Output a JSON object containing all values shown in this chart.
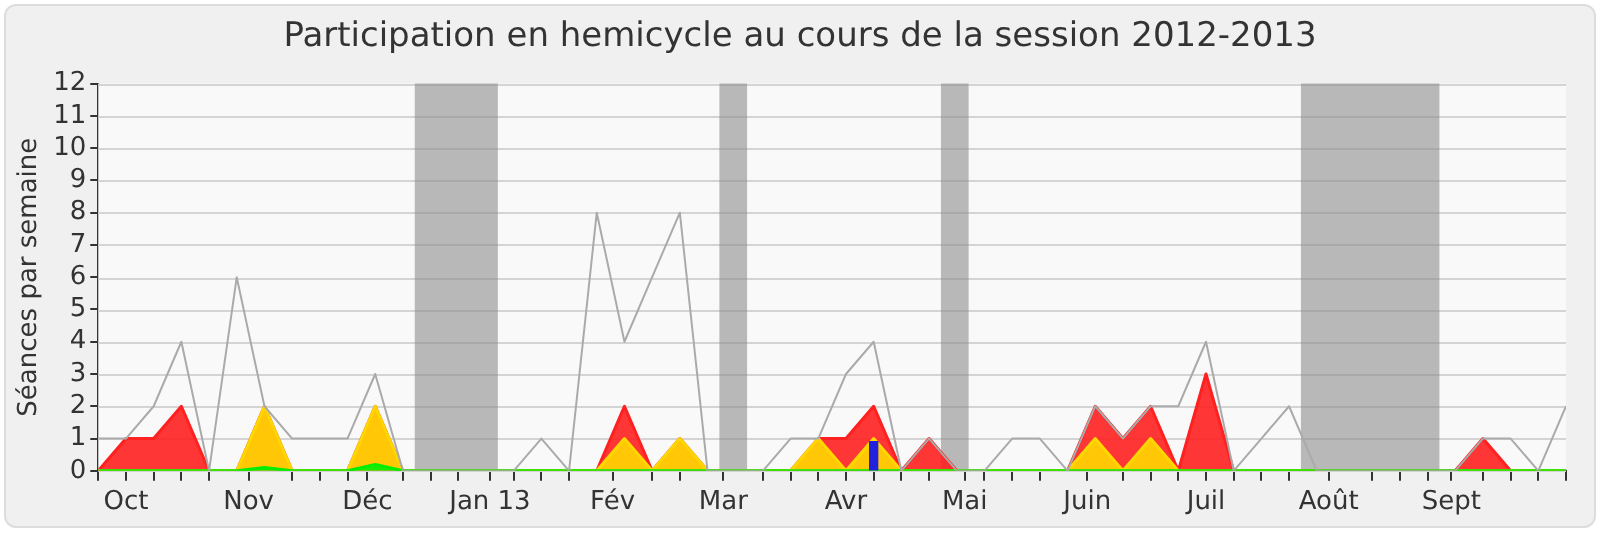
{
  "chart_data": {
    "type": "area",
    "title": "Participation en hemicycle au cours de la session 2012-2013",
    "ylabel": "Séances par semaine",
    "x": [
      "2012-09-24",
      "2012-10-01",
      "2012-10-08",
      "2012-10-15",
      "2012-10-22",
      "2012-10-29",
      "2012-11-05",
      "2012-11-12",
      "2012-11-19",
      "2012-11-26",
      "2012-12-03",
      "2012-12-10",
      "2012-12-17",
      "2012-12-24",
      "2012-12-31",
      "2013-01-07",
      "2013-01-14",
      "2013-01-21",
      "2013-01-28",
      "2013-02-04",
      "2013-02-11",
      "2013-02-18",
      "2013-02-25",
      "2013-03-04",
      "2013-03-11",
      "2013-03-18",
      "2013-03-25",
      "2013-04-01",
      "2013-04-08",
      "2013-04-15",
      "2013-04-22",
      "2013-04-29",
      "2013-05-06",
      "2013-05-13",
      "2013-05-20",
      "2013-05-27",
      "2013-06-03",
      "2013-06-10",
      "2013-06-17",
      "2013-06-24",
      "2013-07-01",
      "2013-07-08",
      "2013-07-15",
      "2013-07-22",
      "2013-07-29",
      "2013-08-05",
      "2013-08-12",
      "2013-08-19",
      "2013-08-26",
      "2013-09-02",
      "2013-09-09",
      "2013-09-16",
      "2013-09-23",
      "2013-09-30"
    ],
    "xlim": [
      "2012-09-24",
      "2013-09-30"
    ],
    "xticks": [
      {
        "value": "2012-09-24",
        "label": null
      },
      {
        "value": "2012-10-01",
        "label": "Oct"
      },
      {
        "value": "2012-10-08",
        "label": null
      },
      {
        "value": "2012-10-15",
        "label": null
      },
      {
        "value": "2012-10-22",
        "label": null
      },
      {
        "value": "2012-11-01",
        "label": "Nov"
      },
      {
        "value": "2012-11-12",
        "label": null
      },
      {
        "value": "2012-11-19",
        "label": null
      },
      {
        "value": "2012-11-26",
        "label": null
      },
      {
        "value": "2012-12-01",
        "label": "Déc"
      },
      {
        "value": "2012-12-10",
        "label": null
      },
      {
        "value": "2012-12-17",
        "label": null
      },
      {
        "value": "2012-12-24",
        "label": null
      },
      {
        "value": "2013-01-01",
        "label": "Jan 13"
      },
      {
        "value": "2013-01-07",
        "label": null
      },
      {
        "value": "2013-01-14",
        "label": null
      },
      {
        "value": "2013-01-21",
        "label": null
      },
      {
        "value": "2013-02-01",
        "label": "Fév"
      },
      {
        "value": "2013-02-11",
        "label": null
      },
      {
        "value": "2013-02-18",
        "label": null
      },
      {
        "value": "2013-03-01",
        "label": "Mar"
      },
      {
        "value": "2013-03-11",
        "label": null
      },
      {
        "value": "2013-03-18",
        "label": null
      },
      {
        "value": "2013-03-25",
        "label": null
      },
      {
        "value": "2013-04-01",
        "label": "Avr"
      },
      {
        "value": "2013-04-08",
        "label": null
      },
      {
        "value": "2013-04-15",
        "label": null
      },
      {
        "value": "2013-04-22",
        "label": null
      },
      {
        "value": "2013-05-01",
        "label": "Mai"
      },
      {
        "value": "2013-05-06",
        "label": null
      },
      {
        "value": "2013-05-13",
        "label": null
      },
      {
        "value": "2013-05-20",
        "label": null
      },
      {
        "value": "2013-06-01",
        "label": "Juin"
      },
      {
        "value": "2013-06-10",
        "label": null
      },
      {
        "value": "2013-06-17",
        "label": null
      },
      {
        "value": "2013-06-24",
        "label": null
      },
      {
        "value": "2013-07-01",
        "label": "Juil"
      },
      {
        "value": "2013-07-08",
        "label": null
      },
      {
        "value": "2013-07-15",
        "label": null
      },
      {
        "value": "2013-07-22",
        "label": null
      },
      {
        "value": "2013-08-01",
        "label": "Août"
      },
      {
        "value": "2013-08-12",
        "label": null
      },
      {
        "value": "2013-08-19",
        "label": null
      },
      {
        "value": "2013-08-26",
        "label": null
      },
      {
        "value": "2013-09-01",
        "label": "Sept"
      },
      {
        "value": "2013-09-09",
        "label": null
      },
      {
        "value": "2013-09-16",
        "label": null
      },
      {
        "value": "2013-09-23",
        "label": null
      },
      {
        "value": "2013-09-30",
        "label": null
      }
    ],
    "ylim": [
      0,
      12
    ],
    "yticks": [
      0,
      1,
      2,
      3,
      4,
      5,
      6,
      7,
      8,
      9,
      10,
      11,
      12
    ],
    "series": [
      {
        "type": "line",
        "color": "#aaaaaa",
        "values": [
          1,
          1,
          2,
          4,
          0,
          6,
          2,
          1,
          1,
          1,
          3,
          0,
          0,
          0,
          0,
          0,
          1,
          0,
          8,
          4,
          6,
          8,
          0,
          0,
          0,
          1,
          1,
          3,
          4,
          0,
          1,
          0,
          0,
          1,
          1,
          0,
          2,
          1,
          2,
          2,
          4,
          0,
          1,
          2,
          0,
          0,
          0,
          0,
          0,
          0,
          1,
          1,
          0,
          2
        ]
      },
      {
        "color": "#ff2020",
        "values": [
          0,
          1,
          1,
          2,
          0,
          0,
          2,
          0,
          0,
          0,
          2,
          0,
          0,
          0,
          0,
          0,
          0,
          0,
          0,
          2,
          0,
          1,
          0,
          0,
          0,
          0,
          1,
          1,
          2,
          0,
          1,
          0,
          0,
          0,
          0,
          0,
          2,
          1,
          2,
          0,
          3,
          0,
          0,
          0,
          0,
          0,
          0,
          0,
          0,
          0,
          1,
          0,
          0,
          0
        ]
      },
      {
        "color": "#ffd700",
        "values": [
          0,
          0,
          0,
          0,
          0,
          0,
          2,
          0,
          0,
          0,
          2,
          0,
          0,
          0,
          0,
          0,
          0,
          0,
          0,
          1,
          0,
          1,
          0,
          0,
          0,
          0,
          1,
          0,
          1,
          0,
          0,
          0,
          0,
          0,
          0,
          0,
          1,
          0,
          1,
          0,
          0,
          0,
          0,
          0,
          0,
          0,
          0,
          0,
          0,
          0,
          0,
          0,
          0,
          0
        ]
      },
      {
        "color": "#00ee00",
        "values": [
          0,
          0,
          0,
          0,
          0,
          0,
          0.1,
          0,
          0,
          0,
          0.2,
          0,
          0,
          0,
          0,
          0,
          0,
          0,
          0,
          0,
          0,
          0,
          0,
          0,
          0,
          0,
          0,
          0,
          0,
          0,
          0,
          0,
          0,
          0,
          0,
          0,
          0,
          0,
          0,
          0,
          0,
          0,
          0,
          0,
          0,
          0,
          0,
          0,
          0,
          0,
          0,
          0,
          0,
          0
        ]
      },
      {
        "type": "bar",
        "color": "#2020dd",
        "x": [
          "2013-04-08"
        ],
        "values": [
          0.9
        ]
      }
    ],
    "bands": [
      {
        "axis": "x",
        "from": "2012-12-13",
        "to": "2013-01-03",
        "color": "#8c8c8c"
      },
      {
        "axis": "x",
        "from": "2013-02-28",
        "to": "2013-03-07",
        "color": "#8c8c8c"
      },
      {
        "axis": "x",
        "from": "2013-04-25",
        "to": "2013-05-02",
        "color": "#8c8c8c"
      },
      {
        "axis": "x",
        "from": "2013-07-25",
        "to": "2013-08-29",
        "color": "#8c8c8c"
      }
    ],
    "grid": "y",
    "legend": false,
    "marker": "none"
  }
}
